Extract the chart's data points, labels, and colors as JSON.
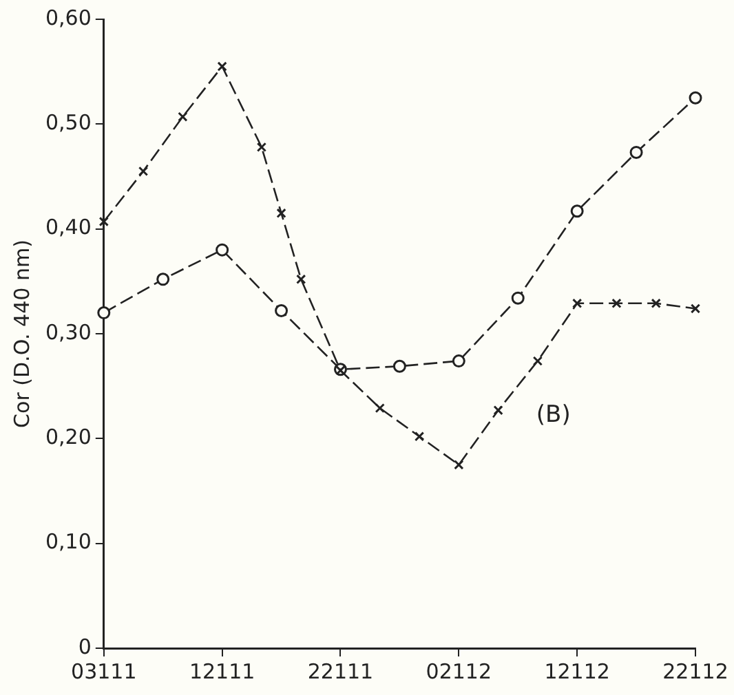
{
  "chart_data": {
    "type": "line",
    "ylabel": "Cor (D.O. 440 nm)",
    "annotations": [
      "(B)"
    ],
    "categories": [
      "03111",
      null,
      null,
      null,
      null,
      null,
      "12111",
      null,
      null,
      null,
      null,
      null,
      "22111",
      null,
      null,
      null,
      null,
      null,
      "02112",
      null,
      null,
      null,
      null,
      null,
      "12112",
      null,
      null,
      null,
      null,
      null,
      "22112"
    ],
    "ylim": [
      0,
      0.6
    ],
    "yticks": [
      0,
      {
        "value": 0.1,
        "label": "0,10"
      },
      {
        "value": 0.2,
        "label": "0,20"
      },
      {
        "value": 0.3,
        "label": "0,30"
      },
      {
        "value": 0.4,
        "label": "0,40"
      },
      {
        "value": 0.5,
        "label": "0,50"
      },
      {
        "value": 0.6,
        "label": "0,60"
      }
    ],
    "grid": false,
    "legend": false,
    "line_style": "dashed",
    "series": [
      {
        "color": "#222222",
        "marker": "cross",
        "values": [
          0.407,
          null,
          0.455,
          null,
          0.507,
          null,
          0.555,
          null,
          0.478,
          0.415,
          0.352,
          null,
          0.265,
          null,
          0.229,
          null,
          0.202,
          null,
          0.175,
          null,
          0.227,
          null,
          0.274,
          null,
          0.329,
          null,
          0.329,
          null,
          0.329,
          null,
          0.324
        ]
      },
      {
        "color": "#222222",
        "marker": "circle",
        "values": [
          0.32,
          null,
          null,
          0.352,
          null,
          null,
          0.38,
          null,
          null,
          0.322,
          null,
          null,
          0.266,
          null,
          null,
          0.269,
          null,
          null,
          0.274,
          null,
          null,
          0.334,
          null,
          null,
          0.417,
          null,
          null,
          0.473,
          null,
          null,
          0.525
        ]
      }
    ]
  }
}
